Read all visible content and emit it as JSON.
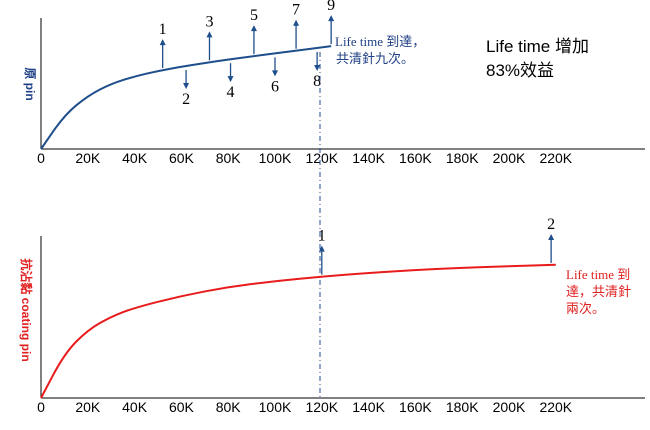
{
  "chart_data": [
    {
      "type": "line",
      "ylabel": "原 pin",
      "xticks": [
        "0",
        "20K",
        "40K",
        "60K",
        "80K",
        "100K",
        "120K",
        "140K",
        "160K",
        "180K",
        "200K",
        "220K"
      ],
      "xlim": [
        0,
        220000
      ],
      "ylim": [
        0,
        1
      ],
      "series": [
        {
          "color": "#1f4e8c",
          "x": [
            0,
            10000,
            20000,
            30000,
            40000,
            50000,
            60000,
            70000,
            80000,
            90000,
            100000,
            110000,
            120000,
            124000
          ],
          "y": [
            0,
            0.28,
            0.44,
            0.54,
            0.6,
            0.645,
            0.68,
            0.71,
            0.74,
            0.765,
            0.79,
            0.815,
            0.84,
            0.85
          ]
        }
      ],
      "cleanings": [
        {
          "label": "1",
          "x": 52000,
          "dir": "up"
        },
        {
          "label": "2",
          "x": 62000,
          "dir": "down"
        },
        {
          "label": "3",
          "x": 72000,
          "dir": "up"
        },
        {
          "label": "4",
          "x": 81000,
          "dir": "down"
        },
        {
          "label": "5",
          "x": 91000,
          "dir": "up"
        },
        {
          "label": "6",
          "x": 100000,
          "dir": "down"
        },
        {
          "label": "7",
          "x": 109000,
          "dir": "up"
        },
        {
          "label": "8",
          "x": 118000,
          "dir": "down"
        },
        {
          "label": "9",
          "x": 124000,
          "dir": "up"
        }
      ],
      "annotation": [
        "Life time 到達，",
        "共清針九次。"
      ],
      "note": [
        "Life time 增加",
        "83%效益"
      ]
    },
    {
      "type": "line",
      "ylabel": "抗沾黏 coating pin",
      "xticks": [
        "0",
        "20K",
        "40K",
        "60K",
        "80K",
        "100K",
        "120K",
        "140K",
        "160K",
        "180K",
        "200K",
        "220K"
      ],
      "xlim": [
        0,
        220000
      ],
      "ylim": [
        0,
        1
      ],
      "series": [
        {
          "color": "#e81c1c",
          "x": [
            0,
            10000,
            20000,
            30000,
            40000,
            60000,
            80000,
            100000,
            120000,
            140000,
            160000,
            180000,
            200000,
            220000
          ],
          "y": [
            0,
            0.3,
            0.46,
            0.55,
            0.61,
            0.69,
            0.75,
            0.79,
            0.82,
            0.845,
            0.865,
            0.88,
            0.89,
            0.9
          ]
        }
      ],
      "cleanings": [
        {
          "label": "1",
          "x": 120000,
          "dir": "up"
        },
        {
          "label": "2",
          "x": 218000,
          "dir": "up"
        }
      ],
      "annotation": [
        "Life time 到",
        "達，共清針",
        "兩次。"
      ]
    }
  ],
  "colors": {
    "blue": "#1f4e8c",
    "red": "#e81c1c",
    "annotation_blue": "#1f3f86"
  }
}
